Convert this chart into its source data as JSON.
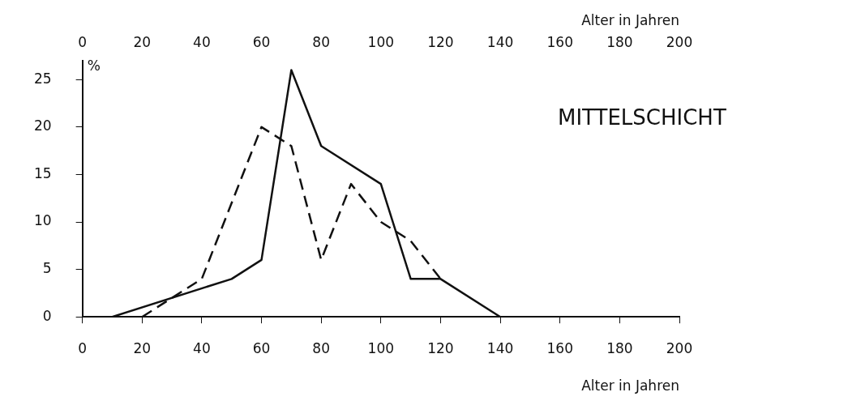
{
  "chart_data": {
    "type": "line",
    "title": "MITTELSCHICHT",
    "xlabel": "Alter in Jahren",
    "x2label": "Alter in Jahren",
    "ylabel": "%",
    "xlim": [
      0,
      200
    ],
    "xticks": [
      0,
      20,
      40,
      60,
      80,
      100,
      120,
      140,
      160,
      180,
      200
    ],
    "x2lim": [
      0,
      200
    ],
    "x2ticks": [
      0,
      20,
      40,
      60,
      80,
      100,
      120,
      140,
      160,
      180,
      200
    ],
    "ylim": [
      0,
      27
    ],
    "yticks": [
      0,
      5,
      10,
      15,
      20,
      25
    ],
    "grid": false,
    "marker": "none",
    "series": [
      {
        "color": "#111111",
        "line_style": "solid",
        "x": [
          10,
          50,
          60,
          70,
          80,
          100,
          110,
          120,
          140
        ],
        "values": [
          0,
          4,
          6,
          26,
          18,
          14,
          4,
          4,
          0
        ]
      },
      {
        "color": "#111111",
        "line_style": "dashed",
        "x": [
          20,
          40,
          60,
          70,
          80,
          90,
          100,
          110,
          120
        ],
        "values": [
          0,
          4,
          20,
          18,
          6,
          14,
          10,
          8,
          4
        ]
      }
    ]
  }
}
